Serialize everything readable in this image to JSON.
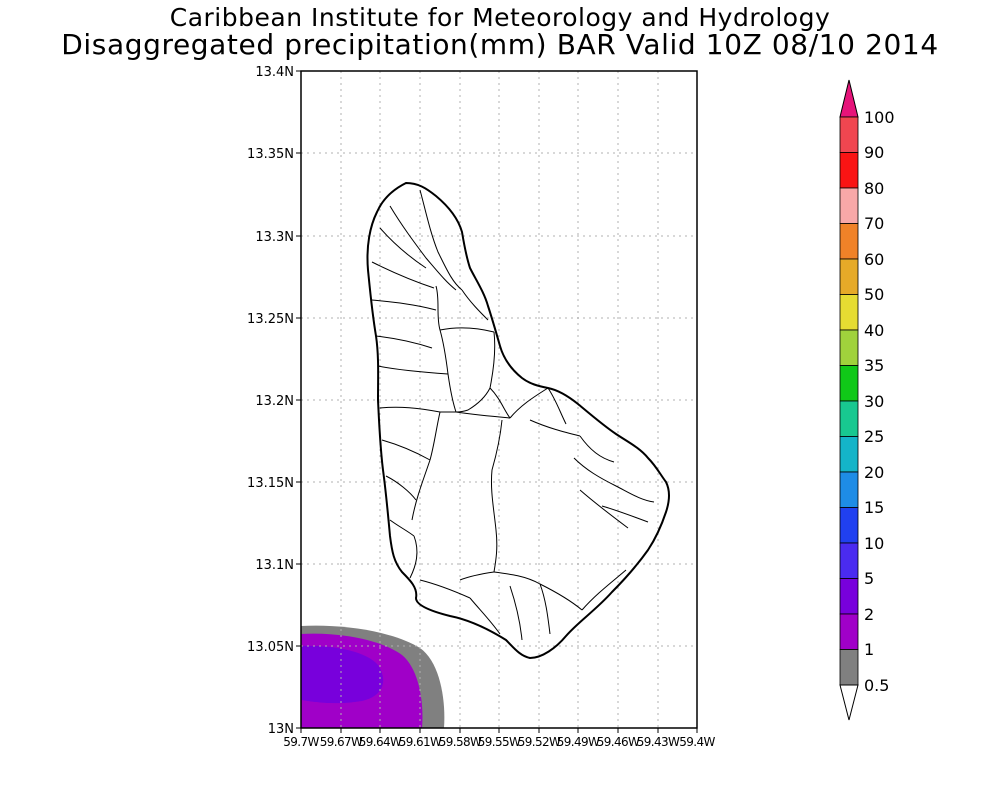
{
  "title": {
    "line1": "Caribbean Institute for Meteorology and Hydrology",
    "line2": "Disaggregated precipitation(mm) BAR Valid 10Z 08/10 2014"
  },
  "map": {
    "lon_range": [
      -59.7,
      -59.4
    ],
    "lat_range": [
      13.0,
      13.4
    ],
    "grid": true,
    "lat_ticks": [
      "13.4N",
      "13.35N",
      "13.3N",
      "13.25N",
      "13.2N",
      "13.15N",
      "13.1N",
      "13.05N",
      "13N"
    ],
    "lon_ticks": [
      "59.7W",
      "59.67W",
      "59.64W",
      "59.61W",
      "59.58W",
      "59.55W",
      "59.52W",
      "59.49W",
      "59.46W",
      "59.43W",
      "59.4W"
    ]
  },
  "colorbar": {
    "labels": [
      "0.5",
      "1",
      "2",
      "5",
      "10",
      "15",
      "20",
      "25",
      "30",
      "35",
      "40",
      "50",
      "60",
      "70",
      "80",
      "90",
      "100"
    ],
    "colors": [
      "#808080",
      "#a000c8",
      "#7800dc",
      "#4a2bf0",
      "#2040f0",
      "#1e8ce6",
      "#14b4c8",
      "#18c890",
      "#10c818",
      "#a0d23c",
      "#e6dc32",
      "#e6aa28",
      "#f08228",
      "#f8a8a8",
      "#fa1414",
      "#f04650"
    ],
    "top_color": "#e6147a"
  }
}
